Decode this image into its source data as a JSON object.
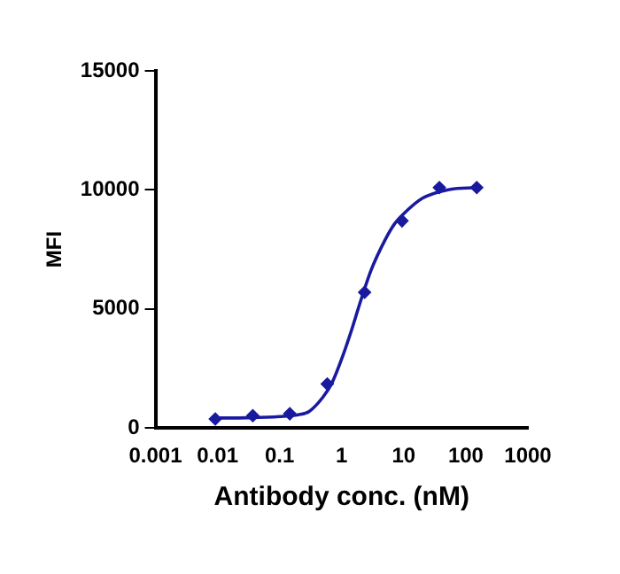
{
  "chart_data": {
    "type": "scatter",
    "xlabel": "Antibody conc. (nM)",
    "ylabel": "MFI",
    "log": "x",
    "xlim": [
      0.001,
      1000
    ],
    "xticks": [
      0.001,
      0.01,
      0.1,
      1,
      10,
      100,
      1000
    ],
    "ylim": [
      0,
      15000
    ],
    "yticks": [
      0,
      5000,
      10000,
      15000
    ],
    "grid": false,
    "legend": false,
    "marker": "diamond",
    "series": [
      {
        "color": "#1a1aa0",
        "x": [
          0.0092,
          0.037,
          0.146,
          0.586,
          2.34,
          9.375,
          37.5,
          150
        ],
        "values": [
          380,
          520,
          600,
          1850,
          5700,
          8700,
          10100,
          10100
        ]
      },
      {
        "type": "line",
        "color": "#1a1aa0",
        "marker": "none",
        "line_style": "solid",
        "x": [
          0.0092,
          0.03,
          0.1,
          0.2,
          0.3,
          0.5,
          0.7,
          1,
          1.5,
          2,
          3,
          5,
          7,
          10,
          20,
          50,
          150
        ],
        "values": [
          420,
          430,
          480,
          560,
          700,
          1300,
          1900,
          2900,
          4250,
          5300,
          6650,
          7900,
          8550,
          9000,
          9650,
          10000,
          10100
        ]
      }
    ]
  }
}
